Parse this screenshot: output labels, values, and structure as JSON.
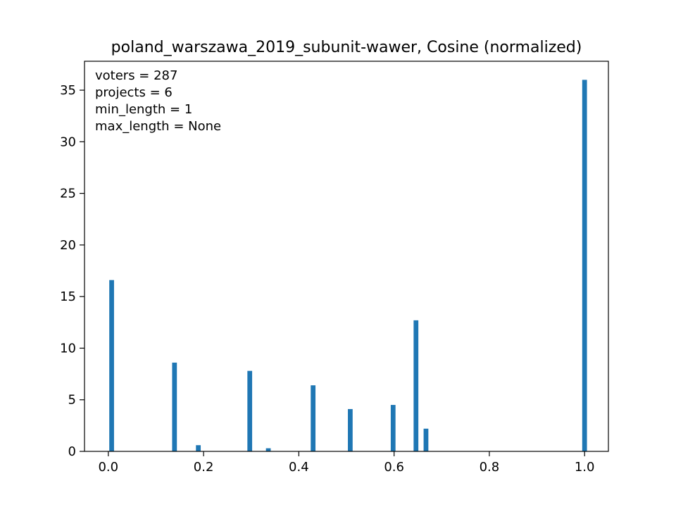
{
  "chart_data": {
    "type": "bar",
    "title": "poland_warszawa_2019_subunit-wawer, Cosine (normalized)",
    "xlabel": "",
    "ylabel": "",
    "xlim": [
      -0.05,
      1.05
    ],
    "ylim": [
      0,
      37.8
    ],
    "xticks": [
      0.0,
      0.2,
      0.4,
      0.6,
      0.8,
      1.0
    ],
    "xtick_labels": [
      "0.0",
      "0.2",
      "0.4",
      "0.6",
      "0.8",
      "1.0"
    ],
    "yticks": [
      0,
      5,
      10,
      15,
      20,
      25,
      30,
      35
    ],
    "ytick_labels": [
      "0",
      "5",
      "10",
      "15",
      "20",
      "25",
      "30",
      "35"
    ],
    "bar_width": 0.01,
    "color": "#1f77b4",
    "grid": false,
    "x": [
      0.007,
      0.139,
      0.189,
      0.297,
      0.336,
      0.43,
      0.508,
      0.598,
      0.646,
      0.667,
      1.0
    ],
    "values": [
      16.6,
      8.6,
      0.6,
      7.8,
      0.3,
      6.4,
      4.1,
      4.5,
      12.7,
      2.2,
      36.0
    ],
    "annotations": [
      "voters = 287",
      "projects = 6",
      "min_length = 1",
      "max_length = None"
    ]
  }
}
